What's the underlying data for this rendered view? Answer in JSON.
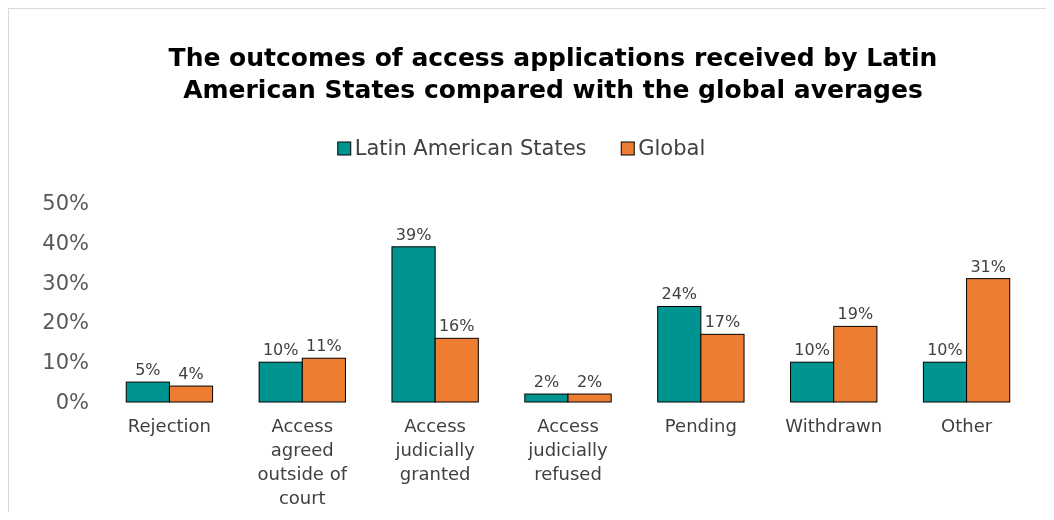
{
  "chart_data": {
    "type": "bar",
    "title": "The outcomes of access applications received by Latin American States compared with the global averages",
    "categories": [
      "Rejection",
      "Access agreed outside of court",
      "Access judicially granted",
      "Access judicially refused",
      "Pending",
      "Withdrawn",
      "Other"
    ],
    "series": [
      {
        "name": "Latin American States",
        "color": "#009491",
        "values": [
          5,
          10,
          39,
          2,
          24,
          10,
          10
        ],
        "value_labels": [
          "5%",
          "10%",
          "39%",
          "2%",
          "24%",
          "10%",
          "10%"
        ]
      },
      {
        "name": "Global",
        "color": "#ed7d31",
        "values": [
          4,
          11,
          16,
          2,
          17,
          19,
          31
        ],
        "value_labels": [
          "4%",
          "11%",
          "16%",
          "2%",
          "17%",
          "19%",
          "31%"
        ]
      }
    ],
    "ylim": [
      0,
      50
    ],
    "yticks": [
      {
        "value": 0,
        "label": "0%"
      },
      {
        "value": 10,
        "label": "10%"
      },
      {
        "value": 20,
        "label": "20%"
      },
      {
        "value": 30,
        "label": "30%"
      },
      {
        "value": 40,
        "label": "40%"
      },
      {
        "value": 50,
        "label": "50%"
      }
    ],
    "grid": false,
    "legend": "top"
  }
}
